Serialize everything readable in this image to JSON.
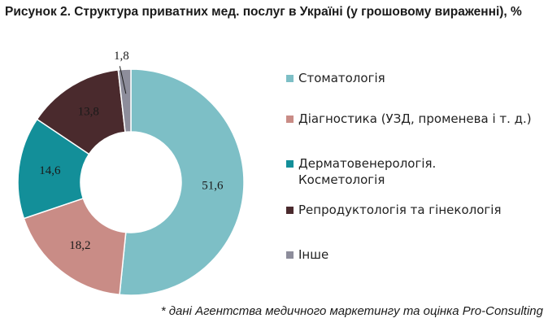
{
  "title": "Рисунок 2. Структура приватних мед. послуг в Україні (у грошовому вираженні), %",
  "source": "* дані Агентства медичного маркетингу та оцінка Pro-Consulting",
  "chart_data": {
    "type": "pie",
    "donut": true,
    "title": "Рисунок 2. Структура приватних мед. послуг в Україні (у грошовому вираженні), %",
    "legend_position": "right",
    "categories": [
      "Стоматологія",
      "Діагностика (УЗД, променева і т. д.)",
      "Дерматовенерологія. Косметологія",
      "Репродуктологія та гінекологія",
      "Інше"
    ],
    "legend_lines": [
      [
        "Стоматологія"
      ],
      [
        "Діагностика (УЗД, променева і т. д.)"
      ],
      [
        "Дерматовенерологія.",
        "Косметологія"
      ],
      [
        "Репродуктологія та гінекологія"
      ],
      [
        "Інше"
      ]
    ],
    "values": [
      51.6,
      18.2,
      14.6,
      13.8,
      1.8
    ],
    "value_labels": [
      "51,6",
      "18,2",
      "14,6",
      "13,8",
      "1,8"
    ],
    "colors": [
      "#7dbfc6",
      "#c98c86",
      "#138f99",
      "#4a2a2d",
      "#8d8d9b"
    ]
  }
}
